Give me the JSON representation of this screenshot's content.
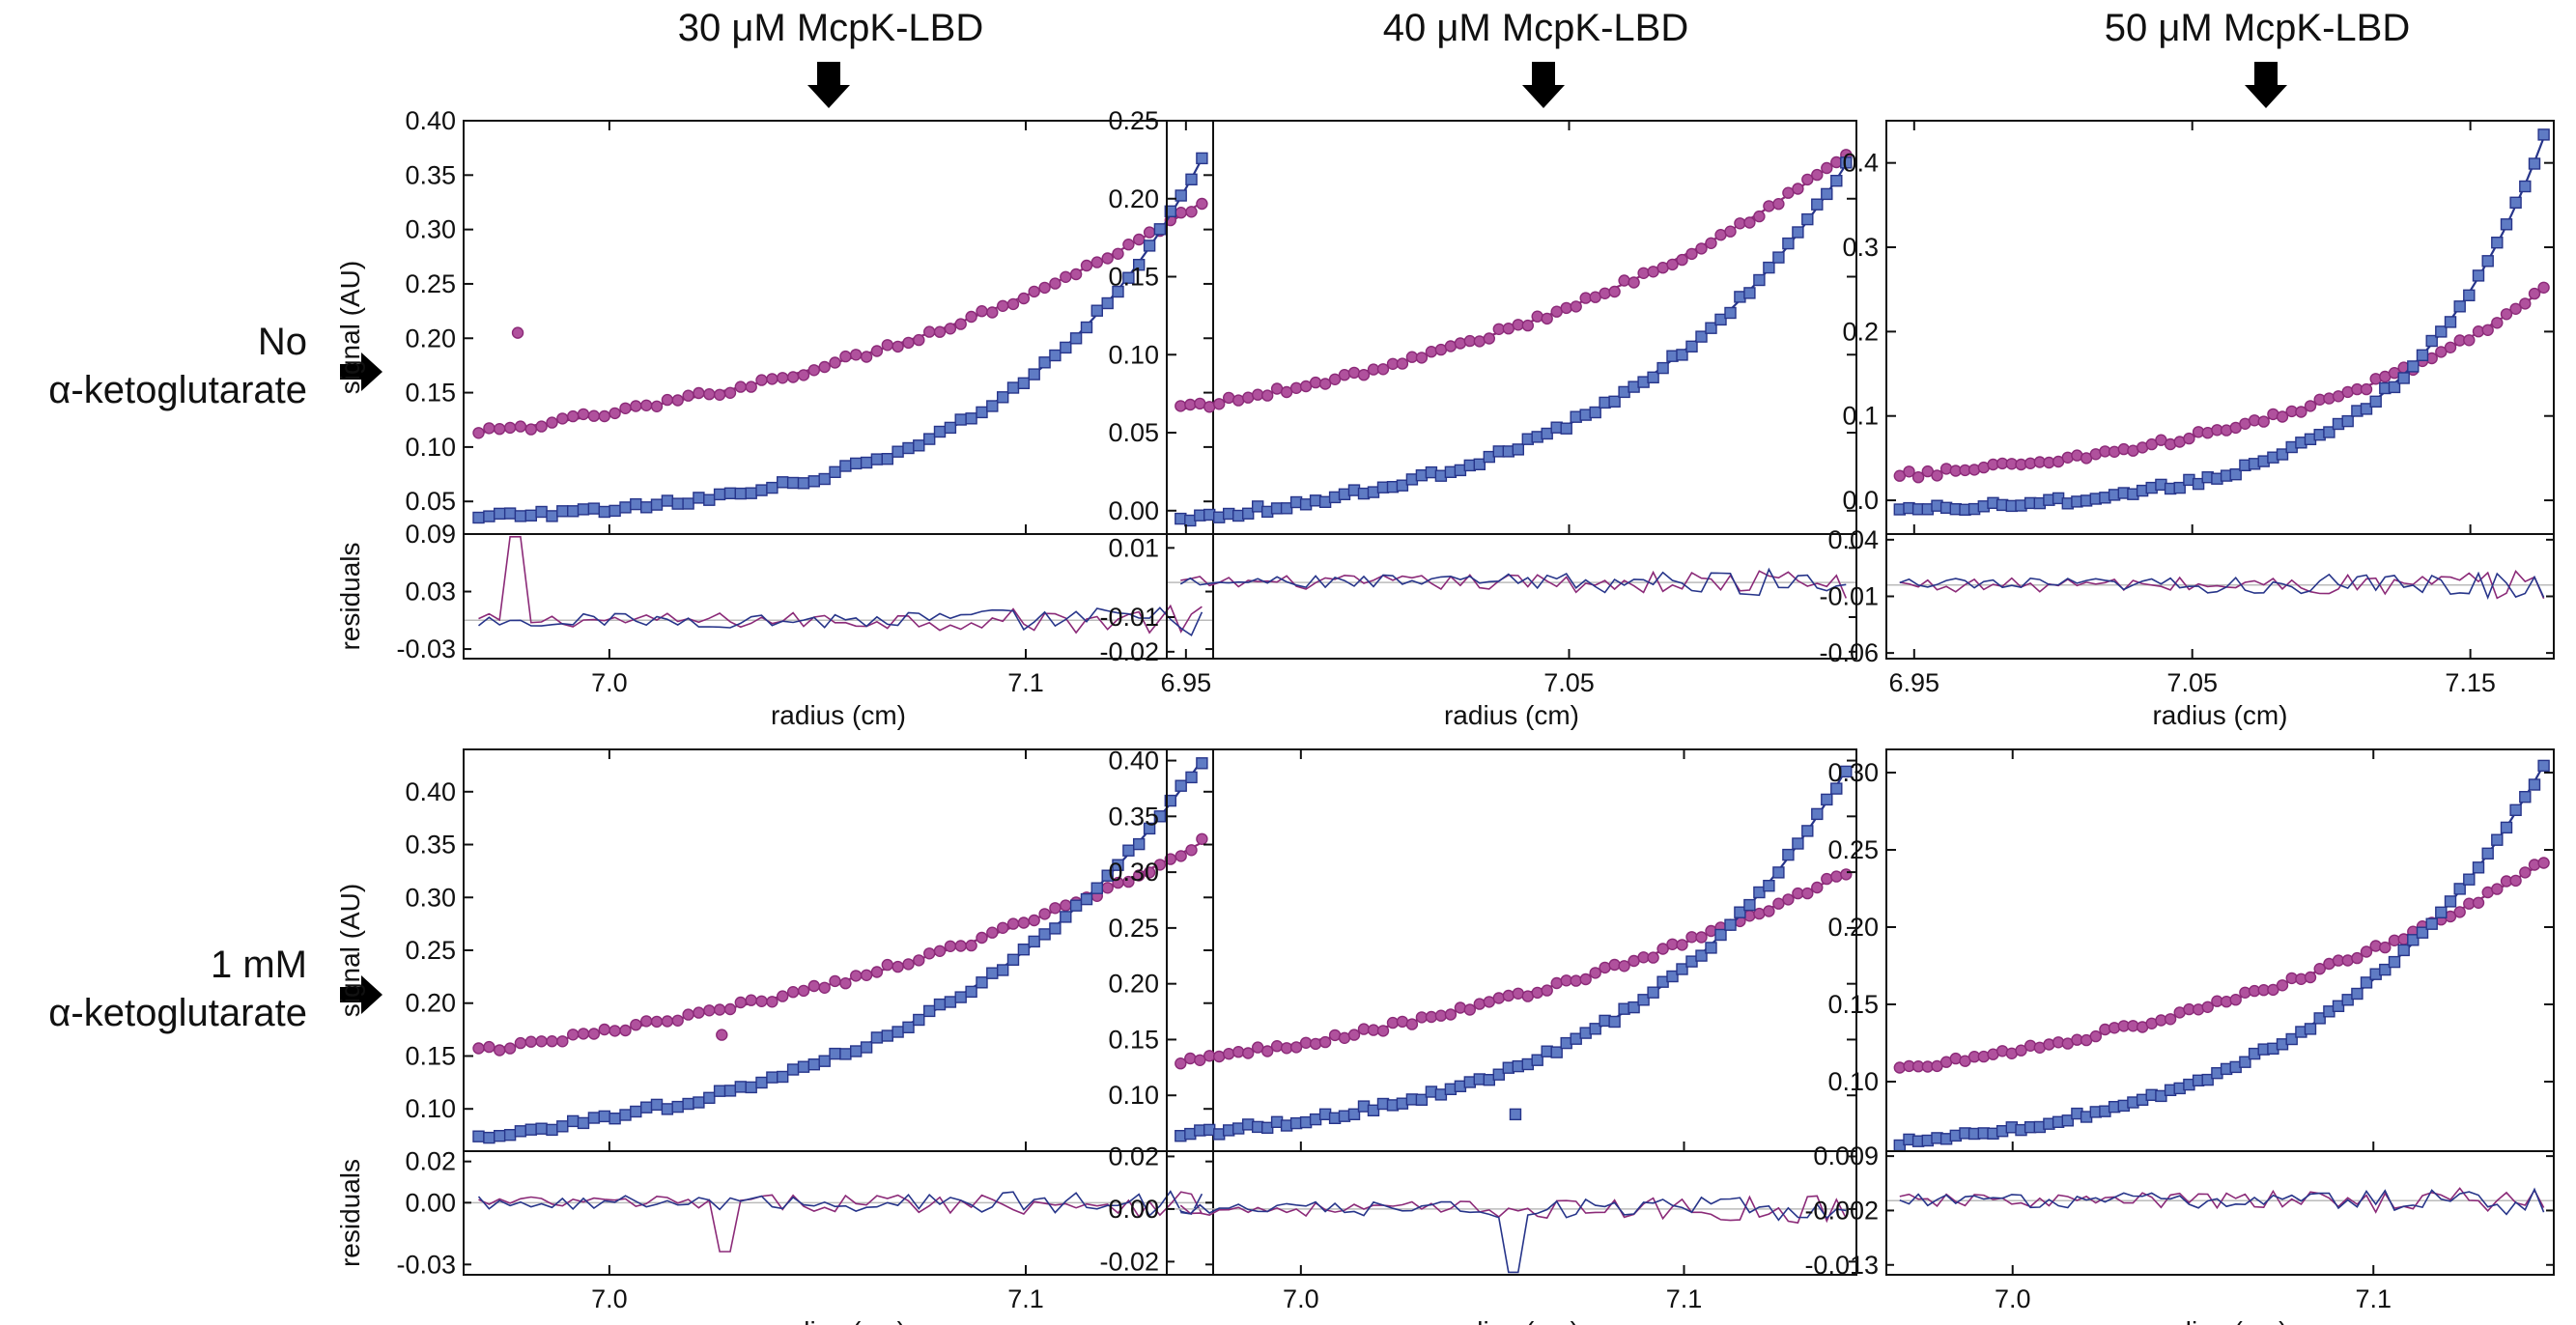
{
  "figure": {
    "column_titles": [
      "30 μM McpK-LBD",
      "40 μM McpK-LBD",
      "50 μM McpK-LBD"
    ],
    "row_labels": [
      {
        "line1": "No",
        "line2": "α-ketoglutarate"
      },
      {
        "line1": "1 mM",
        "line2": "α-ketoglutarate"
      }
    ],
    "arrow_icon": "black-arrow-icon",
    "colors": {
      "magenta": "#8b2a78",
      "magenta_fill": "#b0519d",
      "blue": "#27358a",
      "blue_fill": "#5f7bc4",
      "frame": "#111111",
      "zero_line": "#bbbbbb"
    }
  },
  "chart_data": [
    {
      "type": "scatter",
      "panel": "row1-col1",
      "title": "30 μM McpK-LBD",
      "xlabel": "radius (cm)",
      "ylabel": "signal (AU)",
      "residual_label": "residuals",
      "xlim": [
        6.965,
        7.145
      ],
      "ylim": [
        0.02,
        0.4
      ],
      "xticks": [
        7.0,
        7.1
      ],
      "xtick_labels": [
        "7.0",
        "7.1"
      ],
      "yticks": [
        0.05,
        0.1,
        0.15,
        0.2,
        0.25,
        0.3,
        0.35,
        0.4
      ],
      "ytick_labels": [
        "0.05",
        "0.10",
        "0.15",
        "0.20",
        "0.25",
        "0.30",
        "0.35",
        "0.40"
      ],
      "rlim": [
        -0.04,
        0.09
      ],
      "rticks": [
        -0.03,
        0.03,
        0.09
      ],
      "rtick_labels": [
        "-0.03",
        "0.03",
        "0.09"
      ],
      "series": [
        {
          "name": "magenta",
          "y_start": 0.113,
          "y_end": 0.325,
          "curv": 1.6,
          "outlier": [
            6.978,
            0.205
          ]
        },
        {
          "name": "blue",
          "y_start": 0.035,
          "y_end": 0.365,
          "curv": 3.8
        }
      ]
    },
    {
      "type": "scatter",
      "panel": "row1-col2",
      "title": "40 μM McpK-LBD",
      "xlabel": "radius (cm)",
      "ylabel": "",
      "residual_label": "",
      "xlim": [
        6.945,
        7.125
      ],
      "ylim": [
        -0.015,
        0.25
      ],
      "xticks": [
        6.95,
        7.05
      ],
      "xtick_labels": [
        "6.95",
        "7.05"
      ],
      "yticks": [
        0.0,
        0.05,
        0.1,
        0.15,
        0.2,
        0.25
      ],
      "ytick_labels": [
        "0.00",
        "0.05",
        "0.10",
        "0.15",
        "0.20",
        "0.25"
      ],
      "rlim": [
        -0.022,
        0.014
      ],
      "rticks": [
        -0.02,
        -0.01,
        0.01
      ],
      "rtick_labels": [
        "-0.02",
        "-0.01",
        "0.01"
      ],
      "series": [
        {
          "name": "magenta",
          "y_start": 0.065,
          "y_end": 0.228,
          "curv": 1.5
        },
        {
          "name": "blue",
          "y_start": -0.005,
          "y_end": 0.222,
          "curv": 2.8
        }
      ]
    },
    {
      "type": "scatter",
      "panel": "row1-col3",
      "title": "50 μM McpK-LBD",
      "xlabel": "radius (cm)",
      "ylabel": "",
      "residual_label": "",
      "xlim": [
        6.94,
        7.18
      ],
      "ylim": [
        -0.04,
        0.45
      ],
      "xticks": [
        6.95,
        7.05,
        7.15
      ],
      "xtick_labels": [
        "6.95",
        "7.05",
        "7.15"
      ],
      "yticks": [
        0.0,
        0.1,
        0.2,
        0.3,
        0.4
      ],
      "ytick_labels": [
        "0.0",
        "0.1",
        "0.2",
        "0.3",
        "0.4"
      ],
      "rlim": [
        -0.065,
        0.045
      ],
      "rticks": [
        -0.06,
        -0.01,
        0.04
      ],
      "rtick_labels": [
        "-0.06",
        "-0.01",
        "0.04"
      ],
      "series": [
        {
          "name": "magenta",
          "y_start": 0.03,
          "y_end": 0.25,
          "curv": 2.3
        },
        {
          "name": "blue",
          "y_start": -0.01,
          "y_end": 0.43,
          "curv": 4.6
        }
      ]
    },
    {
      "type": "scatter",
      "panel": "row2-col1",
      "title": "",
      "xlabel": "radius (cm)",
      "ylabel": "signal (AU)",
      "residual_label": "residuals",
      "xlim": [
        6.965,
        7.145
      ],
      "ylim": [
        0.06,
        0.44
      ],
      "xticks": [
        7.0,
        7.1
      ],
      "xtick_labels": [
        "7.0",
        "7.1"
      ],
      "yticks": [
        0.1,
        0.15,
        0.2,
        0.25,
        0.3,
        0.35,
        0.4
      ],
      "ytick_labels": [
        "0.10",
        "0.15",
        "0.20",
        "0.25",
        "0.30",
        "0.35",
        "0.40"
      ],
      "rlim": [
        -0.035,
        0.025
      ],
      "rticks": [
        -0.03,
        0.0,
        0.02
      ],
      "rtick_labels": [
        "-0.03",
        "0.00",
        "0.02"
      ],
      "series": [
        {
          "name": "magenta",
          "y_start": 0.155,
          "y_end": 0.352,
          "curv": 1.4,
          "outlier": [
            7.027,
            0.17
          ]
        },
        {
          "name": "blue",
          "y_start": 0.075,
          "y_end": 0.43,
          "curv": 2.6
        }
      ]
    },
    {
      "type": "scatter",
      "panel": "row2-col2",
      "title": "",
      "xlabel": "radius (cm)",
      "ylabel": "",
      "residual_label": "",
      "xlim": [
        6.965,
        7.145
      ],
      "ylim": [
        0.05,
        0.41
      ],
      "xticks": [
        7.0,
        7.1
      ],
      "xtick_labels": [
        "7.0",
        "7.1"
      ],
      "yticks": [
        0.1,
        0.15,
        0.2,
        0.25,
        0.3,
        0.35,
        0.4
      ],
      "ytick_labels": [
        "0.10",
        "0.15",
        "0.20",
        "0.25",
        "0.30",
        "0.35",
        "0.40"
      ],
      "rlim": [
        -0.025,
        0.022
      ],
      "rticks": [
        -0.02,
        0.0,
        0.02
      ],
      "rtick_labels": [
        "-0.02",
        "0.00",
        "0.02"
      ],
      "series": [
        {
          "name": "magenta",
          "y_start": 0.13,
          "y_end": 0.3,
          "curv": 1.3
        },
        {
          "name": "blue",
          "y_start": 0.065,
          "y_end": 0.392,
          "curv": 3.0,
          "outlier": [
            7.056,
            0.083
          ]
        }
      ]
    },
    {
      "type": "scatter",
      "panel": "row2-col3",
      "title": "",
      "xlabel": "radius (cm)",
      "ylabel": "",
      "residual_label": "",
      "xlim": [
        6.965,
        7.15
      ],
      "ylim": [
        0.055,
        0.315
      ],
      "xticks": [
        7.0,
        7.1
      ],
      "xtick_labels": [
        "7.0",
        "7.1"
      ],
      "yticks": [
        0.1,
        0.15,
        0.2,
        0.25,
        0.3
      ],
      "ytick_labels": [
        "0.10",
        "0.15",
        "0.20",
        "0.25",
        "0.30"
      ],
      "rlim": [
        -0.015,
        0.01
      ],
      "rticks": [
        -0.013,
        -0.002,
        0.009
      ],
      "rtick_labels": [
        "-0.013",
        "-0.002",
        "0.009"
      ],
      "series": [
        {
          "name": "magenta",
          "y_start": 0.108,
          "y_end": 0.242,
          "curv": 1.5
        },
        {
          "name": "blue",
          "y_start": 0.06,
          "y_end": 0.305,
          "curv": 2.9
        }
      ]
    }
  ]
}
